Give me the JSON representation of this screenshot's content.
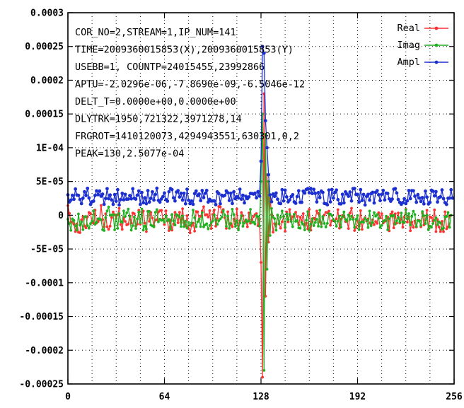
{
  "chart_data": {
    "type": "line",
    "title": "",
    "xlabel": "",
    "ylabel": "",
    "xlim": [
      0,
      256
    ],
    "ylim": [
      -0.00025,
      0.0003
    ],
    "grid": true,
    "legend_position": "top-right",
    "x_ticks": [
      "0",
      "64",
      "128",
      "192",
      "256"
    ],
    "x_tick_values": [
      0,
      64,
      128,
      192,
      256
    ],
    "y_ticks": [
      "0.0003",
      "0.00025",
      "0.0002",
      "0.00015",
      "1E-04",
      "5E-05",
      "0",
      "-5E-05",
      "-0.0001",
      "-0.00015",
      "-0.0002",
      "-0.00025"
    ],
    "y_tick_values": [
      0.0003,
      0.00025,
      0.0002,
      0.00015,
      0.0001,
      5e-05,
      0,
      -5e-05,
      -0.0001,
      -0.00015,
      -0.0002,
      -0.00025
    ],
    "annotations": [
      "COR_NO=2,STREAM=1,IP_NUM=141",
      "TIME=2009360015853(X),2009360015853(Y)",
      "USEBB=1, COUNTP=24015455,23992866",
      "APTU=-2.0296e-06,-7.8690e-09,-6.5046e-12",
      "DELT_T=0.0000e+00,0.0000e+00",
      "DLYTRK=1950,721322,3971278,14",
      "FRGROT=1410120073,4294943551,630301,0,2",
      "PEAK=130,2.5077e-04"
    ],
    "series": [
      {
        "name": "Real",
        "color": "#ff3030",
        "values": [
          1.43e-05,
          2.8e-06,
          -1.02e-05,
          -1.06e-05,
          -1.34e-05,
          -2.42e-05,
          -1.27e-05,
          -2.53e-05,
          -2.58e-05,
          -6.9e-06,
          -2e-06,
          -1.6e-05,
          -1.88e-05,
          -2.2e-06,
          4.2e-06,
          2.4e-06,
          -1.06e-05,
          -1.22e-05,
          7.5e-06,
          -1.17e-05,
          -9.6e-06,
          -6.7e-06,
          1.45e-05,
          -6.5e-06,
          -1.73e-05,
          2.2e-06,
          -1.71e-05,
          -2.09e-05,
          -1.61e-05,
          -3.6e-06,
          4.8e-06,
          7e-07,
          -4.7e-06,
          8e-07,
          1.02e-05,
          -1.37e-05,
          -2.09e-05,
          -3.9e-06,
          -9.2e-06,
          -1.43e-05,
          -1.32e-05,
          -1.1e-06,
          -1.17e-05,
          3.2e-06,
          2.3e-06,
          -1.61e-05,
          -1.33e-05,
          7.4e-06,
          -1.31e-05,
          3.9e-06,
          6.1e-06,
          -1.17e-05,
          -2.43e-05,
          6e-06,
          -9e-06,
          4e-06,
          -4.1e-06,
          -1.52e-05,
          -7.2e-06,
          -6.9e-06,
          4.7e-06,
          6.7e-06,
          7.1e-06,
          -5.6e-06,
          -1.39e-05,
          6.5e-06,
          -8.6e-06,
          -2.28e-05,
          -7.3e-06,
          -2.21e-05,
          -1.33e-05,
          4.3e-06,
          -8e-07,
          -1.12e-05,
          4.3e-06,
          -1.12e-05,
          9.6e-06,
          -1.11e-05,
          -1.6e-05,
          -7e-07,
          -1.98e-05,
          -2.61e-05,
          -1.55e-05,
          -1.17e-05,
          -2.36e-05,
          5.5e-06,
          5.1e-06,
          -6e-06,
          -1.6e-06,
          6.2e-06,
          1.25e-05,
          2e-07,
          1e-06,
          -2.7e-06,
          6.8e-06,
          -1.96e-05,
          1.2e-06,
          7.8e-06,
          -1.63e-05,
          -4.8e-06,
          1.3e-05,
          1.24e-05,
          4.4e-06,
          8.5e-06,
          -3.7e-06,
          -1.95e-05,
          5.2e-06,
          -1.28e-05,
          -1.42e-05,
          -1.71e-05,
          -5.7e-06,
          -1.28e-05,
          9.1e-06,
          -1.96e-05,
          -8.1e-06,
          4e-06,
          -8e-07,
          -1.02e-05,
          -8.3e-06,
          -1.72e-05,
          3.4e-06,
          -1.18e-05,
          -6.4e-06,
          -2.1e-06,
          7e-07,
          2.4e-06,
          -1.55e-05,
          -6e-06,
          -7e-05,
          -0.00024,
          0.00018,
          -0.00012,
          6e-05,
          -4e-05,
          2.5e-05,
          8e-07,
          -2.51e-05,
          -1.25e-05,
          -1.39e-05,
          -5e-07,
          -1.29e-05,
          -1.91e-05,
          -9.7e-06,
          -1.9e-06,
          -2.38e-05,
          5e-06,
          -9.7e-06,
          8.5e-06,
          -6.2e-06,
          -2.3e-06,
          5e-07,
          4.4e-06,
          -1.9e-06,
          -1.43e-05,
          -2.8e-06,
          -8.9e-06,
          2.4e-06,
          -1.51e-05,
          -1.16e-05,
          -2.02e-05,
          8.7e-06,
          -2.22e-05,
          -8.8e-06,
          -4.3e-06,
          -6.2e-06,
          6.3e-06,
          2.6e-06,
          -9.8e-06,
          -1.29e-05,
          -4.1e-06,
          3e-07,
          4.2e-06,
          3.5e-06,
          6.1e-06,
          -1.49e-05,
          -8.1e-06,
          -6.7e-06,
          -8.9e-06,
          -5.2e-06,
          8.2e-06,
          -1.93e-05,
          -5.7e-06,
          -3e-07,
          -2.1e-06,
          -9.4e-06,
          -8.2e-06,
          -1.97e-05,
          3.2e-06,
          1.03e-05,
          -3.9e-06,
          -2.27e-05,
          -1.83e-05,
          -8.3e-06,
          -1.66e-05,
          6.8e-06,
          -2.09e-05,
          -6.4e-06,
          -3.5e-06,
          -8.6e-06,
          -5.6e-06,
          -1.15e-05,
          -1.38e-05,
          -6.7e-06,
          -1.41e-05,
          -9.3e-06,
          -1.2e-05,
          3.7e-06,
          -3.9e-06,
          2.3e-06,
          -1.17e-05,
          -9.2e-06,
          -8.1e-06,
          -2.8e-06,
          -2.32e-05,
          1.6e-06,
          5.1e-06,
          -1.87e-05,
          2.2e-06,
          -1.17e-05,
          3.4e-06,
          -1.16e-05,
          -4.1e-06,
          -1.79e-05,
          -2.8e-06,
          8.9e-06,
          -1.02e-05,
          -2.5e-06,
          -2.3e-05,
          -1.01e-05,
          -1.8e-05,
          -8.5e-06,
          -1.76e-05,
          -7.5e-06,
          -7.9e-06,
          -1.72e-05,
          3.1e-06,
          -1.44e-05,
          -7.5e-06,
          7.3e-06,
          -2.06e-05,
          -2.4e-06,
          -3.6e-06,
          -8.5e-06,
          7.9e-06,
          -2.43e-05,
          -6.3e-06,
          -1.73e-05,
          -2.42e-05,
          -9.1e-06,
          -2.44e-05,
          5.1e-06,
          -2.01e-05,
          -1.73e-05,
          -1.1e-06
        ]
      },
      {
        "name": "Imag",
        "color": "#20b020",
        "values": [
          -5.9e-06,
          -1.23e-05,
          -2.24e-05,
          -5.3e-06,
          -7.8e-06,
          -1.58e-05,
          -2.21e-05,
          1.9e-06,
          -1.48e-05,
          -9.7e-06,
          -2.14e-05,
          -2.2e-06,
          -2.3e-06,
          -1.54e-05,
          -1.92e-05,
          -1.24e-05,
          -8.9e-06,
          6.6e-06,
          -1.35e-05,
          -1.08e-05,
          -5.3e-06,
          -5.1e-06,
          -6.7e-06,
          -2.14e-05,
          -2.27e-05,
          -3.6e-06,
          6.3e-06,
          1.22e-05,
          -1e-07,
          3e-07,
          9e-07,
          -2.16e-05,
          3e-07,
          -1.95e-05,
          2.6e-06,
          -9.2e-06,
          -1.05e-05,
          6.4e-06,
          -1.9e-06,
          3.5e-06,
          9.1e-06,
          -1.9e-06,
          -2.22e-05,
          -1.55e-05,
          -2.8e-06,
          -1.97e-05,
          -5.5e-06,
          4.6e-06,
          -1.12e-05,
          9.3e-06,
          -2.21e-05,
          -1.61e-05,
          -2.05e-05,
          5.4e-06,
          5.7e-06,
          -1.46e-05,
          -1.58e-05,
          -1.73e-05,
          4.3e-06,
          8.3e-06,
          -9.8e-06,
          -5.7e-06,
          -7.7e-06,
          -6.8e-06,
          -1.03e-05,
          -9e-07,
          -7.9e-06,
          -6.2e-06,
          -2.06e-05,
          1.2e-06,
          -8.2e-06,
          -1.45e-05,
          1e-06,
          -4e-07,
          -2.9e-06,
          -1.68e-05,
          -1.1e-06,
          -1.69e-05,
          -8.7e-06,
          -1.9e-05,
          -1.08e-05,
          -1.52e-05,
          -1.16e-05,
          7.6e-06,
          -3.7e-06,
          -1.7e-05,
          -9.6e-06,
          -5.5e-06,
          -1.69e-05,
          3.9e-06,
          -1.73e-05,
          -1.44e-05,
          -1.26e-05,
          -2.03e-05,
          -1.52e-05,
          -1.11e-05,
          -8.7e-06,
          5e-07,
          -6.8e-06,
          -1.36e-05,
          -8.3e-06,
          -5.5e-06,
          -2.7e-06,
          6.7e-06,
          3e-07,
          -1.64e-05,
          -1.4e-06,
          -1.94e-05,
          -1.22e-05,
          8.9e-06,
          1e-06,
          -1.65e-05,
          -8e-06,
          -2.19e-05,
          -1.15e-05,
          -7e-07,
          -1.64e-05,
          -1.16e-05,
          -6.9e-06,
          -9.5e-06,
          -8.5e-06,
          8.7e-06,
          -1.08e-05,
          -1.03e-05,
          -1.3e-05,
          -4e-07,
          -2.2e-06,
          -1.62e-05,
          5e-05,
          0.00015,
          -0.00023,
          0.00012,
          -8e-05,
          5e-05,
          -3e-05,
          1e-05,
          -3e-06,
          -5e-06,
          -2.23e-05,
          4e-07,
          -1.24e-05,
          -3.1e-06,
          6.3e-06,
          -1.7e-06,
          -1.82e-05,
          1.9e-06,
          -6.4e-06,
          1.3e-06,
          -9.2e-06,
          -1.71e-05,
          1.5e-06,
          -9.2e-06,
          -7.9e-06,
          -1.87e-05,
          -1.93e-05,
          -1.05e-05,
          -1.34e-05,
          -2.18e-05,
          -7.5e-06,
          5.3e-06,
          -2.25e-05,
          -1.3e-05,
          -5.1e-06,
          -1.55e-05,
          -1.06e-05,
          -5.9e-06,
          -1.62e-05,
          7.4e-06,
          -1.72e-05,
          -2e-06,
          -1.21e-05,
          -1.74e-05,
          -1.21e-05,
          2.3e-06,
          1.6e-06,
          -7e-07,
          -6.8e-06,
          -9.2e-06,
          -1.64e-05,
          -8.8e-06,
          -1.2e-06,
          -1.77e-05,
          -2.6e-06,
          5e-06,
          -6.1e-06,
          -9.1e-06,
          4e-07,
          -6e-06,
          -1.5e-06,
          -6.1e-06,
          -1.81e-05,
          -6.1e-06,
          -4e-07,
          -2.14e-05,
          -1.06e-05,
          -9.5e-06,
          -1.06e-05,
          -4.4e-06,
          -7.2e-06,
          -1.83e-05,
          6.3e-06,
          -1.56e-05,
          -1.08e-05,
          3.9e-06,
          -1.5e-06,
          1.2e-06,
          -4.4e-06,
          -1.82e-05,
          -1.51e-05,
          -9.1e-06,
          -7.7e-06,
          -1.5e-06,
          -2.16e-05,
          -5.4e-06,
          -6e-07,
          -1.4e-06,
          -1e-07,
          -1.31e-05,
          -8.1e-06,
          -3.2e-06,
          -1.05e-05,
          3.3e-06,
          -1.04e-05,
          -1.1e-05,
          8.2e-06,
          -5.4e-06,
          2.5e-06,
          -1.45e-05,
          -1.8e-06,
          6e-06,
          1e-06,
          -1.65e-05,
          -7.7e-06,
          -8.7e-06,
          -1.51e-05,
          5.5e-06,
          -8e-07,
          -1.24e-05,
          -2e-07,
          -2.16e-05,
          -1.61e-05,
          -1.78e-05,
          -1.22e-05,
          -7.6e-06,
          -3.7e-06,
          -1.41e-05,
          -9.7e-06,
          -1.14e-05,
          -2.08e-05,
          -1.9e-05,
          -2.5e-06,
          -1.8e-06,
          4.2e-06,
          -1.8e-05,
          -1e-07
        ]
      },
      {
        "name": "Ampl",
        "color": "#1c2fd0",
        "values": [
          3.02e-05,
          1.97e-05,
          2.24e-05,
          2.95e-05,
          2.37e-05,
          3.88e-05,
          2.99e-05,
          2.94e-05,
          2.33e-05,
          1.72e-05,
          2.52e-05,
          3.48e-05,
          2.92e-05,
          3.98e-05,
          2.56e-05,
          1.6e-05,
          1.99e-05,
          2.09e-05,
          2.93e-05,
          3.61e-05,
          3.04e-05,
          3.58e-05,
          2.82e-05,
          3.12e-05,
          1.62e-05,
          2.48e-05,
          3.93e-05,
          2.45e-05,
          2.99e-05,
          2.26e-05,
          1.61e-05,
          3.06e-05,
          2.07e-05,
          3.79e-05,
          1.52e-05,
          2.33e-05,
          3.24e-05,
          2.28e-05,
          3.09e-05,
          2.37e-05,
          2.39e-05,
          2.91e-05,
          2.43e-05,
          3.92e-05,
          2.51e-05,
          2.39e-05,
          2.96e-05,
          3.59e-05,
          1.6e-05,
          3.37e-05,
          1.85e-05,
          2.59e-05,
          1.71e-05,
          3.65e-05,
          1.95e-05,
          2.51e-05,
          3.47e-05,
          2.25e-05,
          3.08e-05,
          4e-05,
          2.2e-05,
          1.95e-05,
          2.4e-05,
          2.76e-05,
          3.29e-05,
          2.32e-05,
          2.08e-05,
          3.49e-05,
          3.95e-05,
          3.8e-05,
          2.58e-05,
          2.11e-05,
          3.43e-05,
          3.64e-05,
          2.7e-05,
          3.26e-05,
          2.25e-05,
          3.24e-05,
          1.69e-05,
          3.85e-05,
          2.22e-05,
          1.72e-05,
          2.11e-05,
          1.62e-05,
          3.2e-05,
          3.59e-05,
          2.9e-05,
          3.14e-05,
          2.16e-05,
          3.66e-05,
          2.61e-05,
          3.25e-05,
          3.67e-05,
          1.95e-05,
          2.35e-05,
          2.1e-05,
          2.12e-05,
          2.13e-05,
          1.57e-05,
          3.46e-05,
          3.21e-05,
          1.7e-05,
          2.96e-05,
          2.83e-05,
          2.94e-05,
          3.6e-05,
          3.33e-05,
          2.18e-05,
          3.26e-05,
          1.73e-05,
          3.48e-05,
          2.44e-05,
          2.77e-05,
          2.55e-05,
          3.85e-05,
          2.38e-05,
          2.96e-05,
          1.83e-05,
          2.8e-05,
          2.45e-05,
          2.71e-05,
          3.23e-05,
          3.21e-05,
          3.13e-05,
          3.27e-05,
          2.57e-05,
          3.49e-05,
          2.83e-05,
          8e-05,
          0.00025,
          0.00024,
          0.00014,
          0.0001,
          6e-05,
          3e-05,
          2e-05,
          3.14e-05,
          2.79e-05,
          3.28e-05,
          2.37e-05,
          1.77e-05,
          1.72e-05,
          3.78e-05,
          2.11e-05,
          3.71e-05,
          2.72e-05,
          1.98e-05,
          2.27e-05,
          2.75e-05,
          3.04e-05,
          1.97e-05,
          1.77e-05,
          2.76e-05,
          3.62e-05,
          1.91e-05,
          1.91e-05,
          3.56e-05,
          3.28e-05,
          3.81e-05,
          3.94e-05,
          3.32e-05,
          3.97e-05,
          3.21e-05,
          3.83e-05,
          3.24e-05,
          1.97e-05,
          3.35e-05,
          2.61e-05,
          3.58e-05,
          3.38e-05,
          1.75e-05,
          1.69e-05,
          1.55e-05,
          3.73e-05,
          1.98e-05,
          3.81e-05,
          2.53e-05,
          3.39e-05,
          3.73e-05,
          2.31e-05,
          1.7e-05,
          1.68e-05,
          3.1e-05,
          1.83e-05,
          3.46e-05,
          3.13e-05,
          2.81e-05,
          3.44e-05,
          2.11e-05,
          3.94e-05,
          3.96e-05,
          3.07e-05,
          3.09e-05,
          1.95e-05,
          3.79e-05,
          2.18e-05,
          3.08e-05,
          1.52e-05,
          2.79e-05,
          3.09e-05,
          2.23e-05,
          3.2e-05,
          3.39e-05,
          1.82e-05,
          3.39e-05,
          3.64e-05,
          3.03e-05,
          2.17e-05,
          3.1e-05,
          3.67e-05,
          2.27e-05,
          3.27e-05,
          3.23e-05,
          2.43e-05,
          2.07e-05,
          2.39e-05,
          3.86e-05,
          3.94e-05,
          3.3e-05,
          2.33e-05,
          1.89e-05,
          1.62e-05,
          1.87e-05,
          2.44e-05,
          1.72e-05,
          2.14e-05,
          3.66e-05,
          2.46e-05,
          3.64e-05,
          3.63e-05,
          2.82e-05,
          1.92e-05,
          3.06e-05,
          2.55e-05,
          2.04e-05,
          2.61e-05,
          1.68e-05,
          3.57e-05,
          2.68e-05,
          1.67e-05,
          1.9e-05,
          3.7e-05,
          3.56e-05,
          2.86e-05,
          3.49e-05,
          1.96e-05,
          2.63e-05,
          2.73e-05,
          3.75e-05,
          2.46e-05,
          1.86e-05,
          1.6e-05,
          2.52e-05,
          2.53e-05,
          3.78e-05,
          2.54e-05
        ]
      }
    ]
  }
}
